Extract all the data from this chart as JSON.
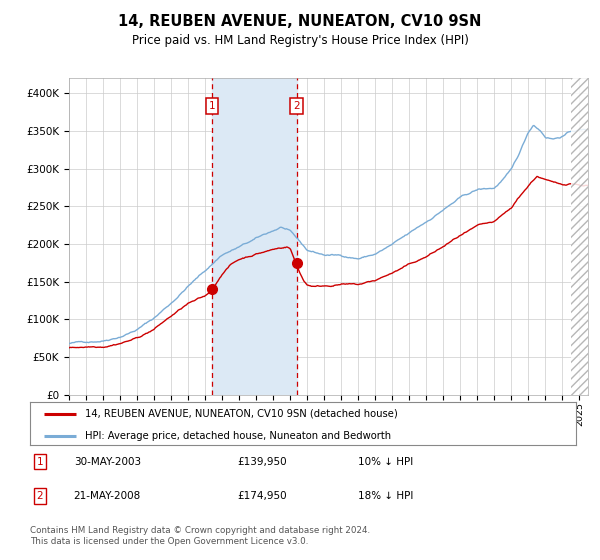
{
  "title": "14, REUBEN AVENUE, NUNEATON, CV10 9SN",
  "subtitle": "Price paid vs. HM Land Registry's House Price Index (HPI)",
  "title_fontsize": 10.5,
  "subtitle_fontsize": 8.5,
  "background_color": "#ffffff",
  "plot_bg_color": "#ffffff",
  "grid_color": "#cccccc",
  "hpi_line_color": "#7aacd6",
  "price_line_color": "#cc0000",
  "highlight_bg": "#dce9f5",
  "sale1_date": 2003.41,
  "sale1_price": 139950,
  "sale2_date": 2008.38,
  "sale2_price": 174950,
  "xmin": 1995,
  "xmax": 2025.5,
  "ymin": 0,
  "ymax": 420000,
  "yticks": [
    0,
    50000,
    100000,
    150000,
    200000,
    250000,
    300000,
    350000,
    400000
  ],
  "legend_price": "14, REUBEN AVENUE, NUNEATON, CV10 9SN (detached house)",
  "legend_hpi": "HPI: Average price, detached house, Nuneaton and Bedworth",
  "note1_label": "1",
  "note1_date": "30-MAY-2003",
  "note1_price": "£139,950",
  "note1_hpi": "10% ↓ HPI",
  "note2_label": "2",
  "note2_date": "21-MAY-2008",
  "note2_price": "£174,950",
  "note2_hpi": "18% ↓ HPI",
  "footer": "Contains HM Land Registry data © Crown copyright and database right 2024.\nThis data is licensed under the Open Government Licence v3.0.",
  "hpi_segments": [
    [
      1995.0,
      68000
    ],
    [
      1996.0,
      70000
    ],
    [
      1997.0,
      73000
    ],
    [
      1998.0,
      80000
    ],
    [
      1999.0,
      90000
    ],
    [
      2000.0,
      105000
    ],
    [
      2001.0,
      125000
    ],
    [
      2002.0,
      148000
    ],
    [
      2003.0,
      168000
    ],
    [
      2004.0,
      190000
    ],
    [
      2005.0,
      200000
    ],
    [
      2006.0,
      210000
    ],
    [
      2007.0,
      220000
    ],
    [
      2007.5,
      225000
    ],
    [
      2008.0,
      218000
    ],
    [
      2008.5,
      205000
    ],
    [
      2009.0,
      192000
    ],
    [
      2010.0,
      186000
    ],
    [
      2011.0,
      185000
    ],
    [
      2012.0,
      182000
    ],
    [
      2013.0,
      188000
    ],
    [
      2014.0,
      200000
    ],
    [
      2015.0,
      213000
    ],
    [
      2016.0,
      228000
    ],
    [
      2017.0,
      245000
    ],
    [
      2018.0,
      260000
    ],
    [
      2019.0,
      270000
    ],
    [
      2020.0,
      272000
    ],
    [
      2021.0,
      295000
    ],
    [
      2021.5,
      318000
    ],
    [
      2022.0,
      345000
    ],
    [
      2022.3,
      355000
    ],
    [
      2022.7,
      348000
    ],
    [
      2023.0,
      340000
    ],
    [
      2023.5,
      338000
    ],
    [
      2024.0,
      342000
    ],
    [
      2024.5,
      348000
    ],
    [
      2025.0,
      350000
    ]
  ],
  "price_segments": [
    [
      1995.0,
      62000
    ],
    [
      1996.0,
      64000
    ],
    [
      1997.0,
      66000
    ],
    [
      1998.0,
      72000
    ],
    [
      1999.0,
      79000
    ],
    [
      2000.0,
      91000
    ],
    [
      2001.0,
      108000
    ],
    [
      2002.0,
      124000
    ],
    [
      2003.0,
      132000
    ],
    [
      2003.41,
      139950
    ],
    [
      2004.0,
      163000
    ],
    [
      2004.5,
      175000
    ],
    [
      2005.0,
      182000
    ],
    [
      2006.0,
      190000
    ],
    [
      2007.0,
      196000
    ],
    [
      2007.8,
      200000
    ],
    [
      2008.0,
      198000
    ],
    [
      2008.38,
      174950
    ],
    [
      2008.8,
      155000
    ],
    [
      2009.0,
      150000
    ],
    [
      2009.5,
      148000
    ],
    [
      2010.0,
      149000
    ],
    [
      2011.0,
      152000
    ],
    [
      2012.0,
      150000
    ],
    [
      2013.0,
      155000
    ],
    [
      2014.0,
      165000
    ],
    [
      2015.0,
      175000
    ],
    [
      2016.0,
      185000
    ],
    [
      2017.0,
      198000
    ],
    [
      2018.0,
      212000
    ],
    [
      2019.0,
      222000
    ],
    [
      2020.0,
      225000
    ],
    [
      2021.0,
      242000
    ],
    [
      2021.5,
      258000
    ],
    [
      2022.0,
      272000
    ],
    [
      2022.5,
      285000
    ],
    [
      2023.0,
      280000
    ],
    [
      2023.5,
      275000
    ],
    [
      2024.0,
      272000
    ],
    [
      2024.5,
      275000
    ],
    [
      2025.0,
      273000
    ]
  ]
}
